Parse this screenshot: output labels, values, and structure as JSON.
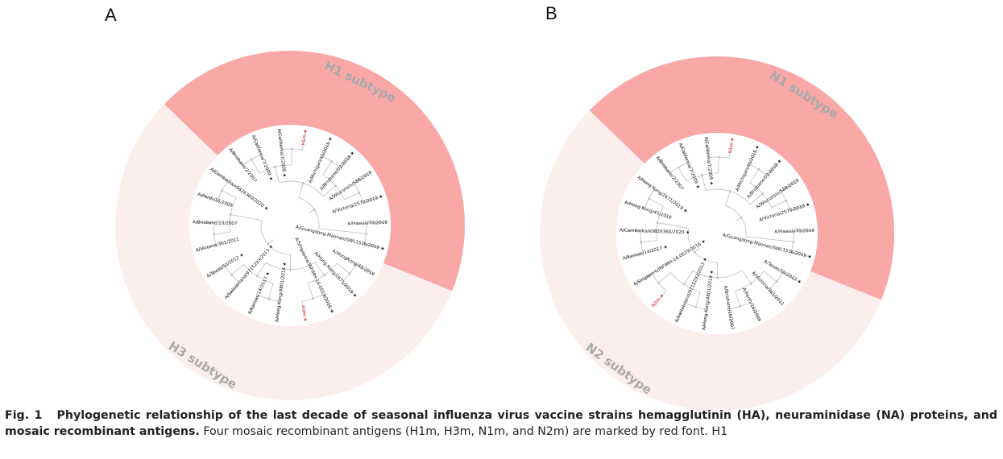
{
  "figure": {
    "panels": [
      {
        "letter": "A",
        "colors": {
          "strong": "#f9a7a7",
          "light": "#fdeeee"
        },
        "strong_label": "H1 subtype",
        "light_label": "H3 subtype",
        "strong_leaves": [
          {
            "text": "A/Brisbane/2/2007",
            "star": false
          },
          {
            "text": "A/California/7/2009",
            "star": true
          },
          {
            "text": "A/California/7/2009",
            "star": true
          },
          {
            "text": "H1m",
            "star": true,
            "mosaic": true
          },
          {
            "text": "A/Michigan/45/2015",
            "star": true
          },
          {
            "text": "A/Brisbane/02/2018",
            "star": true
          },
          {
            "text": "A/Wisconsin/588/2019",
            "star": false
          },
          {
            "text": "A/Victoria/2570/2019",
            "star": true
          },
          {
            "text": "A/Hawaii/70/2019",
            "star": false
          },
          {
            "text": "A/Guangdong-Maonan/SWL1536/2019",
            "star": true
          }
        ],
        "light_leaves": [
          {
            "text": "A/HongKong/45/2019",
            "star": false
          },
          {
            "text": "A/Hong Kong/2671/2019",
            "star": true
          },
          {
            "text": "A/Singapore/INFIMH-16-0019/2016",
            "star": true
          },
          {
            "text": "H3m",
            "star": true,
            "mosaic": true
          },
          {
            "text": "A/Hong Kong/4801/2014",
            "star": true
          },
          {
            "text": "A/Kansas/14/2017",
            "star": true
          },
          {
            "text": "A/Switzerland/9715293/2013",
            "star": true
          },
          {
            "text": "A/Texas/50/2012",
            "star": true
          },
          {
            "text": "A/Victoria/361/2011",
            "star": false
          },
          {
            "text": "A/Brisbane/10/2007",
            "star": false
          },
          {
            "text": "A/Perth/16/2009",
            "star": false
          },
          {
            "text": "A/Cambodia/e0826360/2020",
            "star": true
          }
        ]
      },
      {
        "letter": "B",
        "colors": {
          "strong": "#f9a7a7",
          "light": "#fdeeee"
        },
        "strong_label": "N1 subtype",
        "light_label": "N2 subtype",
        "strong_leaves": [
          {
            "text": "A/Brisbane/2/2007",
            "star": false
          },
          {
            "text": "A/California/7/2009",
            "star": true
          },
          {
            "text": "A/California/7/2009",
            "star": true
          },
          {
            "text": "N1m",
            "star": true,
            "mosaic": true
          },
          {
            "text": "A/Michigan/45/2015",
            "star": true
          },
          {
            "text": "A/Brisbane/02/2018",
            "star": true
          },
          {
            "text": "A/Wisconsin/588/2019",
            "star": false
          },
          {
            "text": "A/Victoria/2570/2019",
            "star": true
          },
          {
            "text": "A/Hawaii/70/2019",
            "star": false
          },
          {
            "text": "A/Guangdong-Maonan/SWL1536/2019",
            "star": true
          }
        ],
        "light_leaves": [
          {
            "text": "A/Texas/50/2012",
            "star": true
          },
          {
            "text": "A/Victoria/361/2011",
            "star": false
          },
          {
            "text": "A/Perth/16/2009",
            "star": false
          },
          {
            "text": "A/Brisbane/10/2007",
            "star": false
          },
          {
            "text": "A/Hong Kong/4801/2014",
            "star": true
          },
          {
            "text": "A/Switzerland/9715293/2013",
            "star": true
          },
          {
            "text": "N2m",
            "star": true,
            "mosaic": true
          },
          {
            "text": "A/Singapore/INFIMH-16-0019/2016",
            "star": true
          },
          {
            "text": "A/Kansas/14/2017",
            "star": true
          },
          {
            "text": "A/Cambodia/e0826360/2020",
            "star": true
          },
          {
            "text": "A/Hong Kong/45/2019",
            "star": false
          },
          {
            "text": "A/Hong Kong/2671/2019",
            "star": true
          }
        ]
      }
    ]
  },
  "caption": {
    "fig_label": "Fig. 1",
    "title": "Phylogenetic relationship of the last decade of seasonal influenza virus vaccine strains hemagglutinin (HA), neuraminidase (NA) proteins, and mosaic recombinant antigens.",
    "body": "Four mosaic recombinant antigens (H1m, H3m, N1m, and N2m) are marked by red font. H1"
  }
}
